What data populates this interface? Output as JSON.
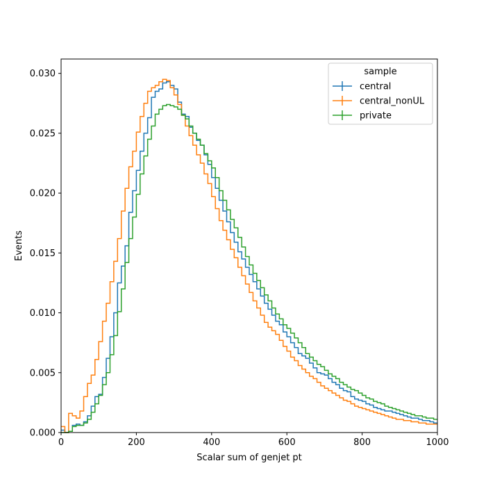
{
  "chart_data": {
    "type": "line",
    "drawstyle": "steps",
    "xlabel": "Scalar sum of genjet pt",
    "ylabel": "Events",
    "xlim": [
      0,
      1000
    ],
    "ylim": [
      0,
      0.0312
    ],
    "xticks": [
      0,
      200,
      400,
      600,
      800,
      1000
    ],
    "xtick_labels": [
      "0",
      "200",
      "400",
      "600",
      "800",
      "1000"
    ],
    "yticks": [
      0,
      0.005,
      0.01,
      0.015,
      0.02,
      0.025,
      0.03
    ],
    "ytick_labels": [
      "0.000",
      "0.005",
      "0.010",
      "0.015",
      "0.020",
      "0.025",
      "0.030"
    ],
    "grid": false,
    "legend": {
      "title": "sample",
      "placement": "top-right"
    },
    "bin_width": 10,
    "x": [
      0,
      10,
      20,
      30,
      40,
      50,
      60,
      70,
      80,
      90,
      100,
      110,
      120,
      130,
      140,
      150,
      160,
      170,
      180,
      190,
      200,
      210,
      220,
      230,
      240,
      250,
      260,
      270,
      280,
      290,
      300,
      310,
      320,
      330,
      340,
      350,
      360,
      370,
      380,
      390,
      400,
      410,
      420,
      430,
      440,
      450,
      460,
      470,
      480,
      490,
      500,
      510,
      520,
      530,
      540,
      550,
      560,
      570,
      580,
      590,
      600,
      610,
      620,
      630,
      640,
      650,
      660,
      670,
      680,
      690,
      700,
      710,
      720,
      730,
      740,
      750,
      760,
      770,
      780,
      790,
      800,
      810,
      820,
      830,
      840,
      850,
      860,
      870,
      880,
      890,
      900,
      910,
      920,
      930,
      940,
      950,
      960,
      970,
      980,
      990
    ],
    "series": [
      {
        "name": "central",
        "color": "#1f77b4",
        "values": [
          0.0002,
          0.0,
          0.0001,
          0.0006,
          0.0007,
          0.0006,
          0.0009,
          0.0014,
          0.0022,
          0.003,
          0.0032,
          0.0046,
          0.0062,
          0.008,
          0.01,
          0.0125,
          0.0139,
          0.0156,
          0.0184,
          0.0202,
          0.0219,
          0.0235,
          0.025,
          0.0263,
          0.028,
          0.0285,
          0.0287,
          0.0292,
          0.0293,
          0.029,
          0.0287,
          0.0276,
          0.0266,
          0.0264,
          0.0255,
          0.025,
          0.0244,
          0.024,
          0.0232,
          0.0224,
          0.0213,
          0.0204,
          0.0194,
          0.0185,
          0.0176,
          0.0167,
          0.0159,
          0.0151,
          0.0145,
          0.0138,
          0.0132,
          0.0126,
          0.012,
          0.0114,
          0.0108,
          0.0103,
          0.0098,
          0.0093,
          0.009,
          0.0084,
          0.008,
          0.0075,
          0.0071,
          0.0066,
          0.0064,
          0.0062,
          0.0058,
          0.0054,
          0.005,
          0.0049,
          0.0048,
          0.0045,
          0.0042,
          0.004,
          0.0037,
          0.0035,
          0.0034,
          0.003,
          0.0028,
          0.0027,
          0.0026,
          0.0024,
          0.0023,
          0.0021,
          0.002,
          0.0019,
          0.0018,
          0.0018,
          0.0017,
          0.0016,
          0.0015,
          0.0014,
          0.0013,
          0.0012,
          0.0012,
          0.0011,
          0.001,
          0.001,
          0.0009,
          0.0008
        ]
      },
      {
        "name": "central_nonUL",
        "color": "#ff7f0e",
        "values": [
          0.0005,
          0.0,
          0.0016,
          0.0014,
          0.0012,
          0.0018,
          0.003,
          0.0041,
          0.0048,
          0.0061,
          0.0076,
          0.0093,
          0.0108,
          0.0126,
          0.0143,
          0.0162,
          0.0185,
          0.0204,
          0.0222,
          0.0235,
          0.0251,
          0.0264,
          0.0275,
          0.0285,
          0.0288,
          0.029,
          0.0293,
          0.0295,
          0.0294,
          0.0288,
          0.0282,
          0.0274,
          0.0265,
          0.0256,
          0.0248,
          0.024,
          0.0232,
          0.0225,
          0.0216,
          0.0208,
          0.0197,
          0.0187,
          0.0177,
          0.0169,
          0.0161,
          0.0153,
          0.0146,
          0.0138,
          0.0131,
          0.0124,
          0.0117,
          0.011,
          0.0104,
          0.0098,
          0.0092,
          0.0088,
          0.0085,
          0.0082,
          0.0077,
          0.0072,
          0.0068,
          0.0063,
          0.006,
          0.0056,
          0.0053,
          0.005,
          0.0047,
          0.0045,
          0.0042,
          0.0039,
          0.0037,
          0.0035,
          0.0033,
          0.0031,
          0.0029,
          0.0027,
          0.0026,
          0.0024,
          0.0022,
          0.0021,
          0.002,
          0.0019,
          0.0018,
          0.0017,
          0.0016,
          0.0015,
          0.0014,
          0.0013,
          0.0012,
          0.0011,
          0.0011,
          0.001,
          0.001,
          0.0009,
          0.0009,
          0.0008,
          0.0008,
          0.0007,
          0.0007,
          0.0007
        ]
      },
      {
        "name": "private",
        "color": "#2ca02c",
        "values": [
          0.0,
          0.0,
          0.0001,
          0.0005,
          0.0006,
          0.0006,
          0.0008,
          0.0011,
          0.0017,
          0.0024,
          0.0031,
          0.004,
          0.005,
          0.0065,
          0.0081,
          0.0101,
          0.012,
          0.0142,
          0.0162,
          0.018,
          0.0199,
          0.0216,
          0.0231,
          0.0245,
          0.0256,
          0.0266,
          0.027,
          0.0273,
          0.0274,
          0.0273,
          0.0272,
          0.027,
          0.0265,
          0.0262,
          0.0256,
          0.025,
          0.0245,
          0.024,
          0.0233,
          0.0227,
          0.0221,
          0.0213,
          0.0202,
          0.0194,
          0.0186,
          0.0178,
          0.0171,
          0.0163,
          0.0155,
          0.0147,
          0.014,
          0.0133,
          0.0127,
          0.0121,
          0.0115,
          0.011,
          0.0104,
          0.0099,
          0.0095,
          0.009,
          0.0087,
          0.0083,
          0.0079,
          0.0075,
          0.0071,
          0.0066,
          0.0063,
          0.006,
          0.0057,
          0.0055,
          0.0052,
          0.0049,
          0.0047,
          0.0045,
          0.0042,
          0.004,
          0.0038,
          0.0036,
          0.0035,
          0.0033,
          0.0031,
          0.0029,
          0.0028,
          0.0026,
          0.0025,
          0.0024,
          0.0022,
          0.0021,
          0.002,
          0.0019,
          0.0018,
          0.0017,
          0.0016,
          0.0015,
          0.0014,
          0.0014,
          0.0013,
          0.0012,
          0.0012,
          0.0011
        ]
      }
    ]
  }
}
